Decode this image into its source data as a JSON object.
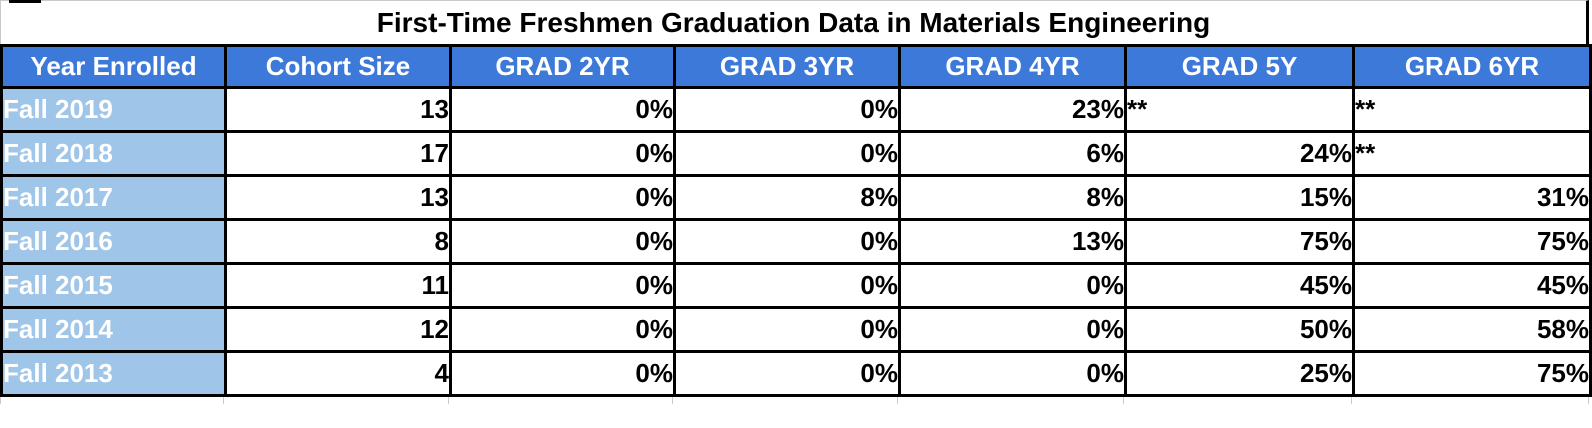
{
  "title": "First-Time Freshmen Graduation Data in Materials Engineering",
  "table": {
    "columns": [
      "Year Enrolled",
      "Cohort Size",
      "GRAD 2YR",
      "GRAD 3YR",
      "GRAD 4YR",
      "GRAD 5Y",
      "GRAD 6YR"
    ],
    "rows": [
      [
        "Fall 2019",
        "13",
        "0%",
        "0%",
        "23%",
        "**",
        "**"
      ],
      [
        "Fall 2018",
        "17",
        "0%",
        "0%",
        "6%",
        "24%",
        "**"
      ],
      [
        "Fall 2017",
        "13",
        "0%",
        "8%",
        "8%",
        "15%",
        "31%"
      ],
      [
        "Fall 2016",
        "8",
        "0%",
        "0%",
        "13%",
        "75%",
        "75%"
      ],
      [
        "Fall 2015",
        "11",
        "0%",
        "0%",
        "0%",
        "45%",
        "45%"
      ],
      [
        "Fall 2014",
        "12",
        "0%",
        "0%",
        "0%",
        "50%",
        "58%"
      ],
      [
        "Fall 2013",
        "4",
        "0%",
        "0%",
        "0%",
        "25%",
        "75%"
      ]
    ],
    "suppressed_marker": "**"
  },
  "colors": {
    "header_bg": "#3c79d9",
    "row_header_bg": "#9fc5e8",
    "header_text": "#ffffff",
    "body_text": "#000000",
    "border": "#000000",
    "gridline": "#c9c9c9"
  }
}
